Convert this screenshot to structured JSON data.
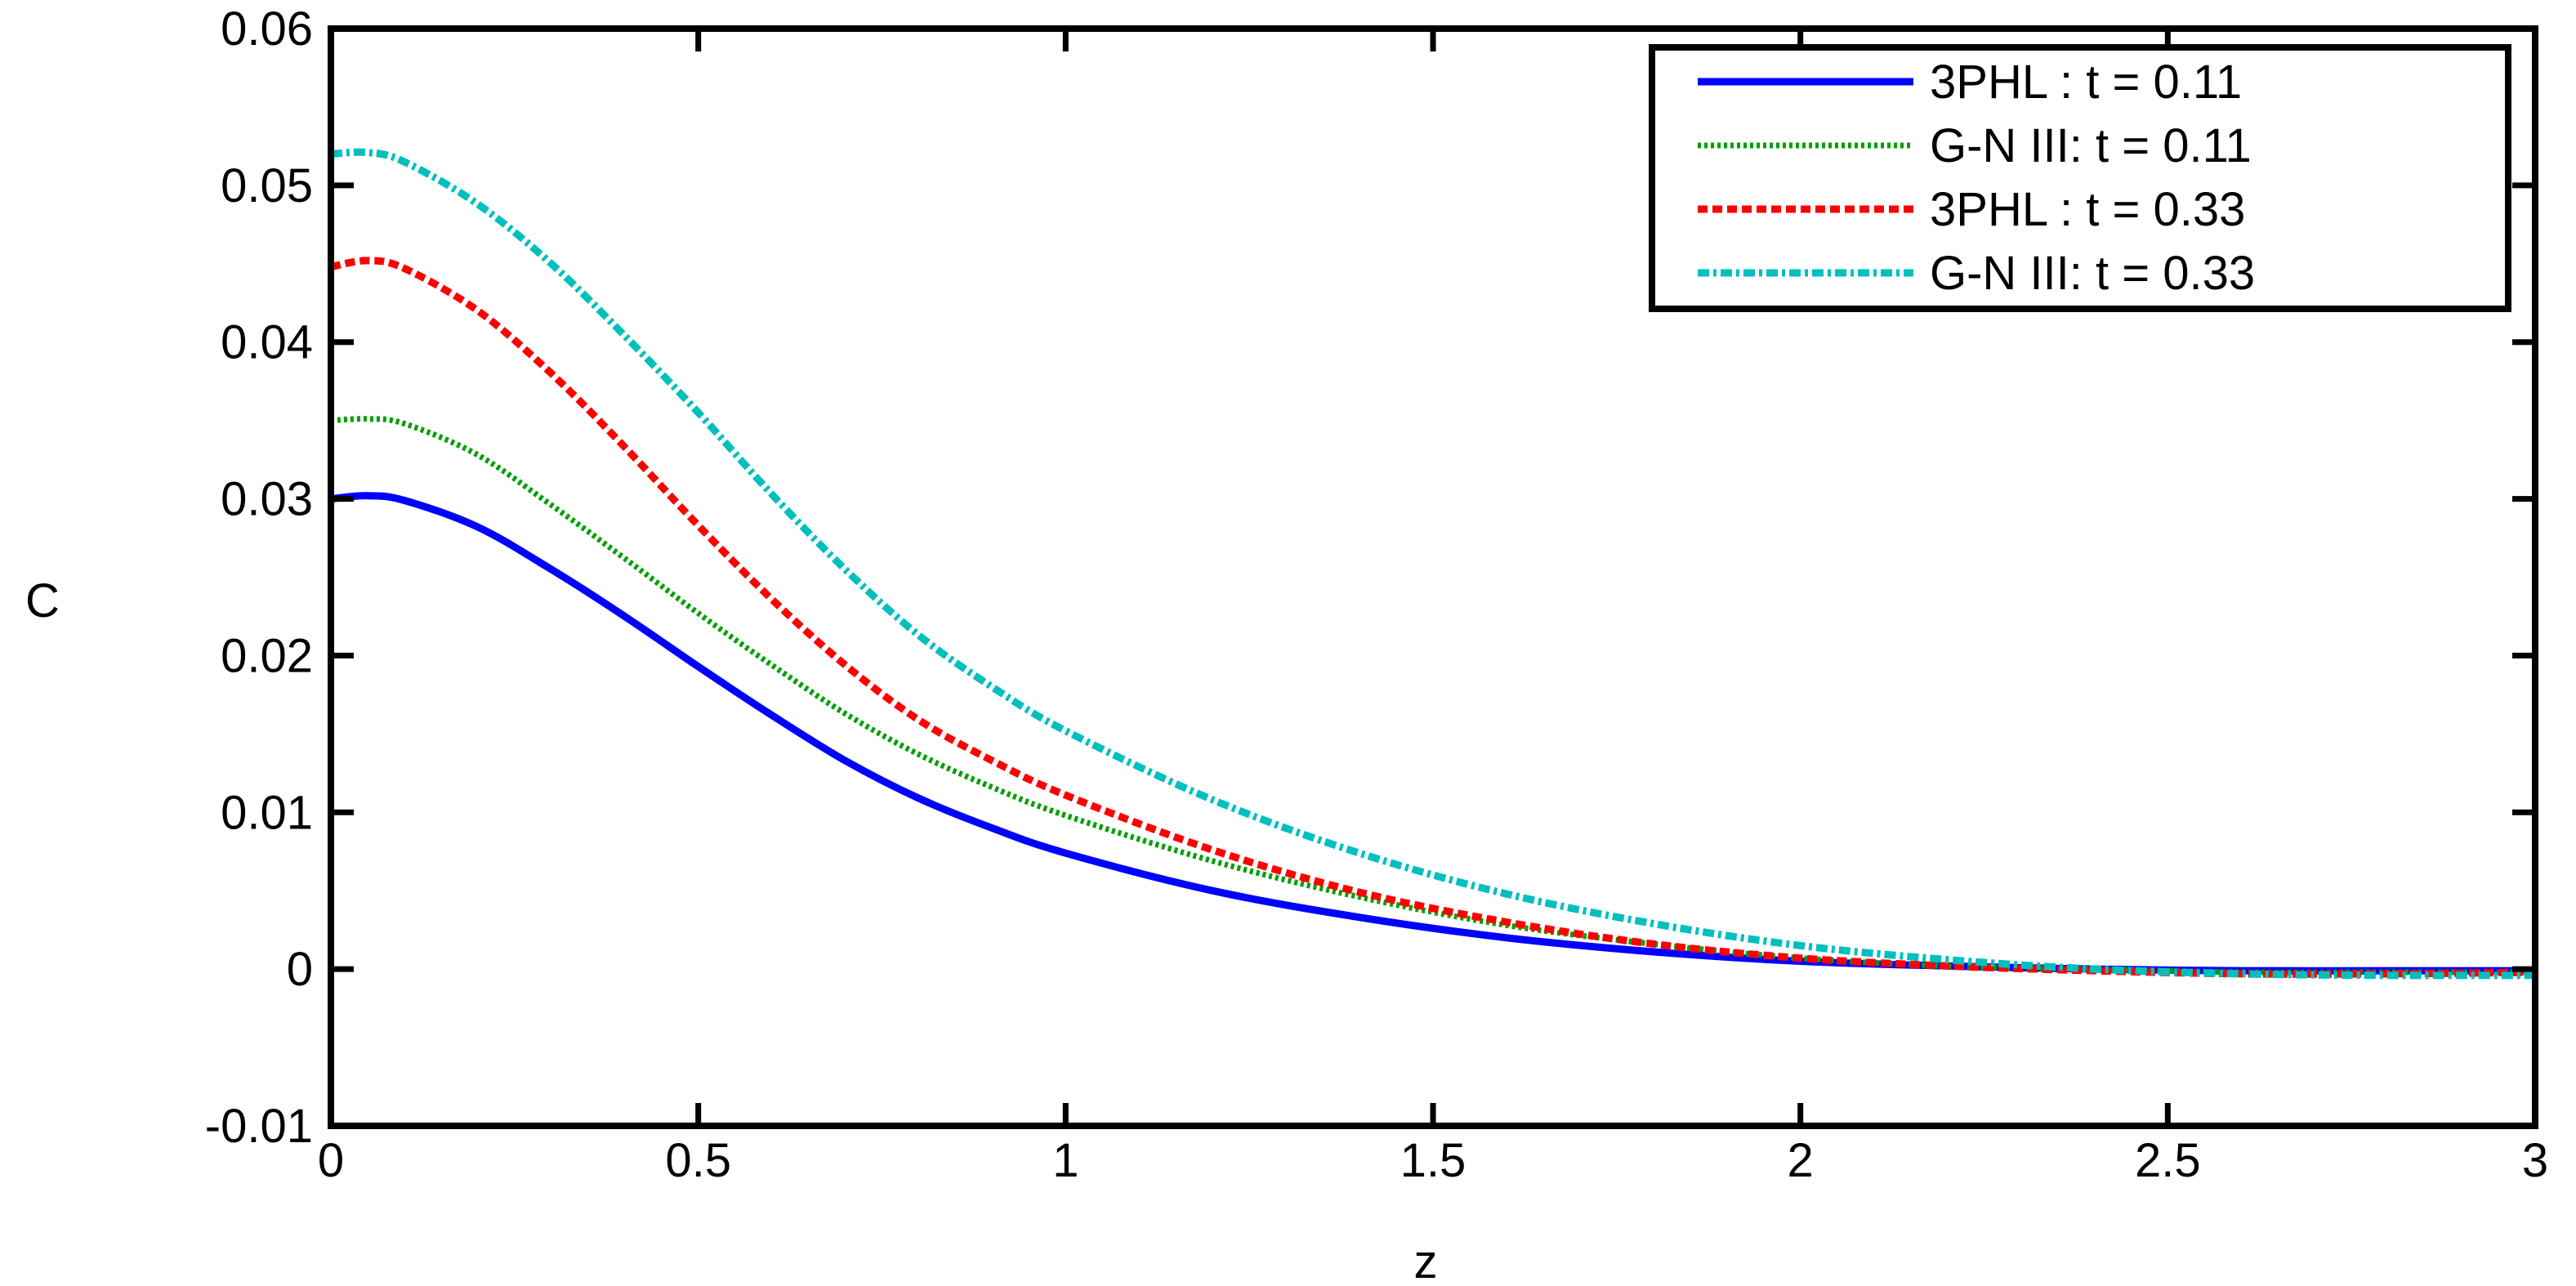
{
  "chart_data": {
    "type": "line",
    "title": "",
    "xlabel": "z",
    "ylabel": "C",
    "xlim": [
      0,
      3
    ],
    "ylim": [
      -0.01,
      0.06
    ],
    "xticks": [
      0,
      0.5,
      1,
      1.5,
      2,
      2.5,
      3
    ],
    "xtick_labels": [
      "0",
      "0.5",
      "1",
      "1.5",
      "2",
      "2.5",
      "3"
    ],
    "yticks": [
      -0.01,
      0,
      0.01,
      0.02,
      0.03,
      0.04,
      0.05,
      0.06
    ],
    "ytick_labels": [
      "-0.01",
      "0",
      "0.01",
      "0.02",
      "0.03",
      "0.04",
      "0.05",
      "0.06"
    ],
    "grid": false,
    "legend_position": "top-right",
    "series": [
      {
        "name": "3PHL : t = 0.11",
        "color": "#0000ff",
        "dash": "solid",
        "x": [
          0,
          0.05,
          0.1,
          0.2,
          0.3,
          0.4,
          0.5,
          0.6,
          0.7,
          0.8,
          0.9,
          1.0,
          1.2,
          1.4,
          1.6,
          1.8,
          2.0,
          2.2,
          2.4,
          2.6,
          2.8,
          3.0
        ],
        "y": [
          0.03,
          0.0302,
          0.0299,
          0.0282,
          0.0255,
          0.0225,
          0.0193,
          0.0162,
          0.0133,
          0.0109,
          0.009,
          0.0074,
          0.005,
          0.0033,
          0.002,
          0.0011,
          0.0005,
          0.0002,
          0.0,
          -0.0001,
          -0.0001,
          -0.0001
        ]
      },
      {
        "name": "G-N III: t = 0.11",
        "color": "#00a000",
        "dash": "dot",
        "x": [
          0,
          0.05,
          0.1,
          0.2,
          0.3,
          0.4,
          0.5,
          0.6,
          0.7,
          0.8,
          0.9,
          1.0,
          1.2,
          1.4,
          1.6,
          1.8,
          2.0,
          2.2,
          2.4,
          2.6,
          2.8,
          3.0
        ],
        "y": [
          0.035,
          0.0351,
          0.0348,
          0.0328,
          0.0296,
          0.0262,
          0.0227,
          0.0194,
          0.0163,
          0.0137,
          0.0116,
          0.0098,
          0.0069,
          0.0046,
          0.0028,
          0.0016,
          0.0007,
          0.0002,
          0.0,
          -0.0002,
          -0.0002,
          -0.0002
        ]
      },
      {
        "name": "3PHL : t = 0.33",
        "color": "#ff0000",
        "dash": "dash",
        "x": [
          0,
          0.05,
          0.1,
          0.2,
          0.3,
          0.4,
          0.5,
          0.6,
          0.7,
          0.8,
          0.9,
          1.0,
          1.2,
          1.4,
          1.6,
          1.8,
          2.0,
          2.2,
          2.4,
          2.6,
          2.8,
          3.0
        ],
        "y": [
          0.0448,
          0.0452,
          0.0447,
          0.042,
          0.038,
          0.0333,
          0.0283,
          0.0236,
          0.0194,
          0.0159,
          0.0133,
          0.0111,
          0.0076,
          0.0049,
          0.003,
          0.0016,
          0.0007,
          0.0002,
          -0.0001,
          -0.0003,
          -0.0003,
          -0.0002
        ]
      },
      {
        "name": "G-N III: t = 0.33",
        "color": "#00bfbf",
        "dash": "dashdot",
        "x": [
          0,
          0.05,
          0.1,
          0.2,
          0.3,
          0.4,
          0.5,
          0.6,
          0.7,
          0.8,
          0.9,
          1.0,
          1.2,
          1.4,
          1.6,
          1.8,
          2.0,
          2.2,
          2.4,
          2.6,
          2.8,
          3.0
        ],
        "y": [
          0.052,
          0.0521,
          0.0515,
          0.0488,
          0.045,
          0.0404,
          0.0355,
          0.0303,
          0.0255,
          0.0213,
          0.018,
          0.0152,
          0.0108,
          0.0074,
          0.0048,
          0.0029,
          0.0015,
          0.0006,
          0.0,
          -0.0003,
          -0.0004,
          -0.0004
        ]
      }
    ]
  }
}
